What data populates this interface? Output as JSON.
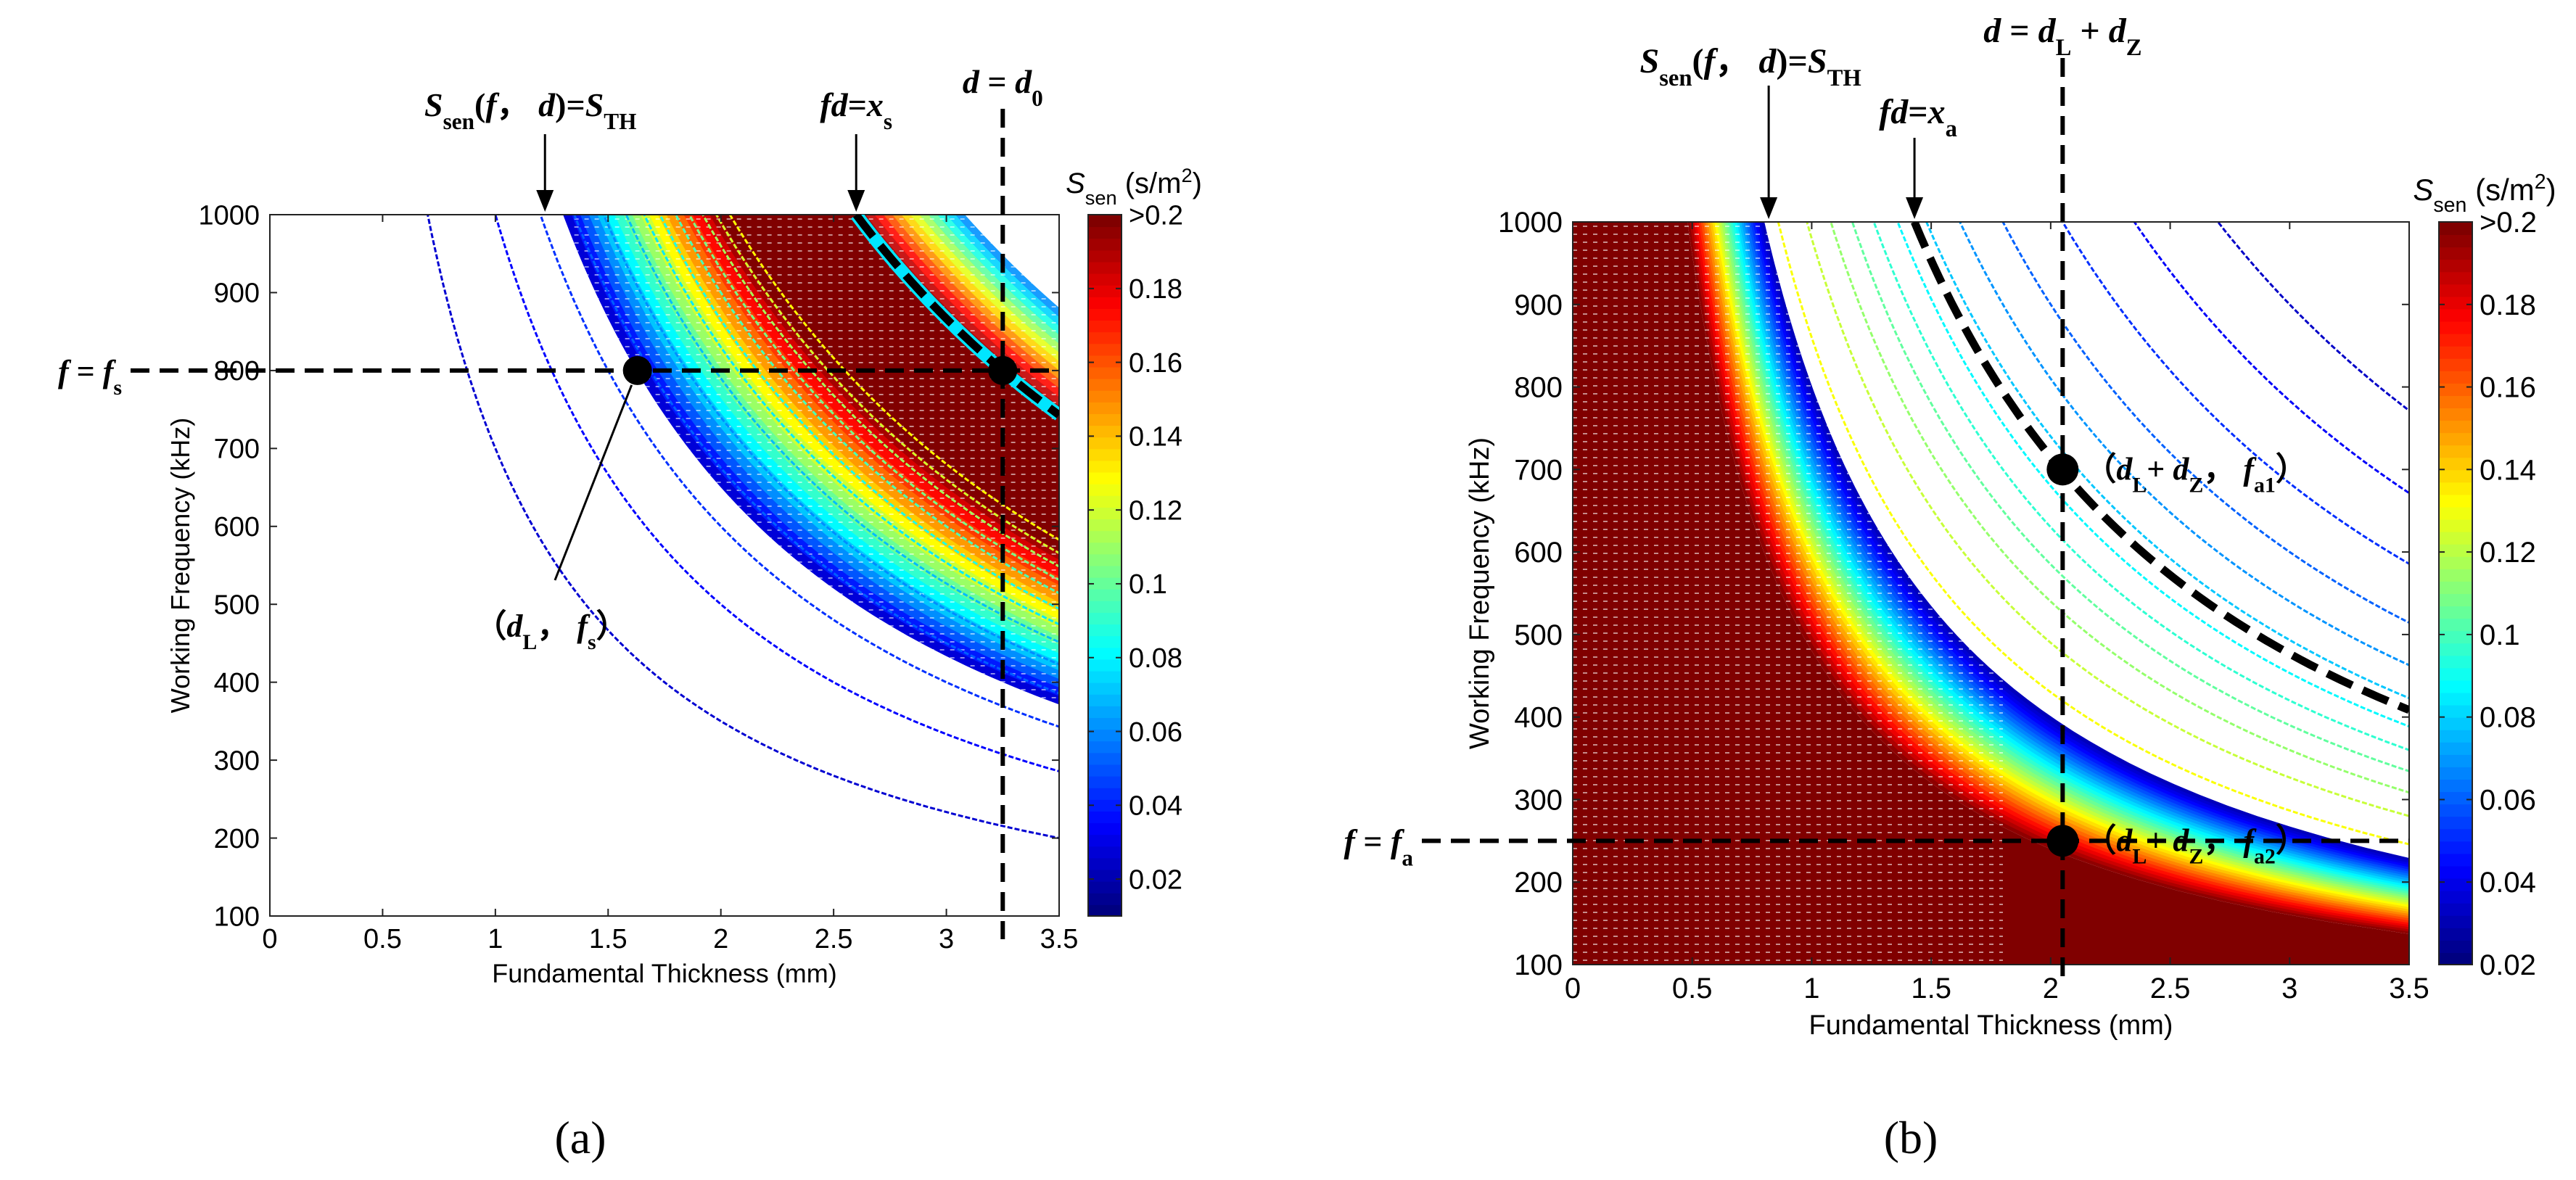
{
  "chart_data": [
    {
      "panel_label": "(a)",
      "type": "contour",
      "xlabel": "Fundamental Thickness (mm)",
      "ylabel": "Working Frequency (kHz)",
      "xlim": [
        0,
        3.5
      ],
      "ylim": [
        100,
        1000
      ],
      "xticks": [
        0,
        0.5,
        1,
        1.5,
        2,
        2.5,
        3,
        3.5
      ],
      "xtick_labels": [
        "0",
        "0.5",
        "1",
        "1.5",
        "2",
        "2.5",
        "3",
        "3.5"
      ],
      "yticks": [
        100,
        200,
        300,
        400,
        500,
        600,
        700,
        800,
        900,
        1000
      ],
      "ytick_labels": [
        "100",
        "200",
        "300",
        "400",
        "500",
        "600",
        "700",
        "800",
        "900",
        "1000"
      ],
      "colorbar": {
        "label": "S",
        "label_sub": "sen",
        "unit": "(s/m",
        "unit_sup": "2",
        "unit_end": ")",
        "range": [
          0.01,
          0.2
        ],
        "ticks": [
          0.02,
          0.04,
          0.06,
          0.08,
          0.1,
          0.12,
          0.14,
          0.16,
          0.18,
          0.2
        ],
        "tick_labels": [
          "0.02",
          "0.04",
          "0.06",
          "0.08",
          "0.1",
          "0.12",
          "0.14",
          "0.16",
          "0.18",
          ">0.2"
        ]
      },
      "contour_fd_levels": [
        0.7,
        1.0,
        1.2,
        1.35,
        1.48,
        1.58,
        1.66,
        1.73,
        1.8,
        1.86,
        1.92,
        1.98,
        2.04
      ],
      "band": {
        "fd_start": 1.3,
        "fd_peak": 2.0,
        "fd_end": 2.6
      },
      "curves": [
        {
          "name": "fd = x_s",
          "fd": 2.6,
          "x_range": [
            2.6,
            3.5
          ]
        }
      ],
      "hlines": [
        {
          "f": 800,
          "label": "f = f",
          "label_sub": "s"
        }
      ],
      "vlines": [
        {
          "d": 3.25,
          "label": "d = d",
          "label_sub": "0"
        }
      ],
      "points": [
        {
          "d": 1.63,
          "f": 800,
          "label": "(d",
          "label_sub1": "L",
          "label_mid": ", f",
          "label_sub2": "s",
          "label_end": ")"
        },
        {
          "d": 3.25,
          "f": 800
        }
      ],
      "annotations": [
        {
          "text": "S",
          "sub": "sen",
          "mid": "(f, d)=S",
          "sub2": "TH",
          "points_to_d": 1.22
        },
        {
          "text": "fd=x",
          "sub": "s",
          "points_to_d": 2.6
        }
      ]
    },
    {
      "panel_label": "(b)",
      "type": "contour",
      "xlabel": "Fundamental Thickness (mm)",
      "ylabel": "Working Frequency (kHz)",
      "xlim": [
        0,
        3.5
      ],
      "ylim": [
        100,
        1000
      ],
      "xticks": [
        0,
        0.5,
        1,
        1.5,
        2,
        2.5,
        3,
        3.5
      ],
      "xtick_labels": [
        "0",
        "0.5",
        "1",
        "1.5",
        "2",
        "2.5",
        "3",
        "3.5"
      ],
      "yticks": [
        100,
        200,
        300,
        400,
        500,
        600,
        700,
        800,
        900,
        1000
      ],
      "ytick_labels": [
        "100",
        "200",
        "300",
        "400",
        "500",
        "600",
        "700",
        "800",
        "900",
        "1000"
      ],
      "colorbar": {
        "label": "S",
        "label_sub": "sen",
        "unit": "(s/m",
        "unit_sup": "2",
        "unit_end": ")",
        "range": [
          0.02,
          0.2
        ],
        "ticks": [
          0.02,
          0.04,
          0.06,
          0.08,
          0.1,
          0.12,
          0.14,
          0.16,
          0.18,
          0.2
        ],
        "tick_labels": [
          "0.02",
          "0.04",
          "0.06",
          "0.08",
          "0.1",
          "0.12",
          "0.14",
          "0.16",
          "0.18",
          ">0.2"
        ]
      },
      "contour_fd_levels": [
        0.86,
        0.98,
        1.08,
        1.17,
        1.26,
        1.36,
        1.48,
        1.62,
        1.8,
        2.05,
        2.35,
        2.7
      ],
      "band": {
        "fd_start": 0.48,
        "fd_peak": 0.66,
        "fd_end": 0.8
      },
      "curves": [
        {
          "name": "fd = x_a",
          "fd": 1.43,
          "x_range": [
            1.43,
            3.5
          ]
        }
      ],
      "hlines": [
        {
          "f": 250,
          "label": "f = f",
          "label_sub": "a"
        }
      ],
      "vlines": [
        {
          "d": 2.05,
          "label": "d = d",
          "label_sub": "L",
          "label_mid": " + d",
          "label_sub2": "Z"
        }
      ],
      "points": [
        {
          "d": 2.05,
          "f": 700,
          "label": "(d",
          "label_sub1": "L",
          "label_mid": "+ d",
          "label_sub2": "Z",
          "label_mid2": ", f",
          "label_sub3": "a1",
          "label_end": ")"
        },
        {
          "d": 2.05,
          "f": 250,
          "label": "(d",
          "label_sub1": "L",
          "label_mid": "+ d",
          "label_sub2": "Z",
          "label_mid2": ", f",
          "label_sub3": "a2",
          "label_end": ")"
        }
      ],
      "annotations": [
        {
          "text": "S",
          "sub": "sen",
          "mid": "(f, d)=S",
          "sub2": "TH",
          "points_to_d": 0.82
        },
        {
          "text": "fd=x",
          "sub": "a",
          "points_to_d": 1.43
        }
      ]
    }
  ]
}
